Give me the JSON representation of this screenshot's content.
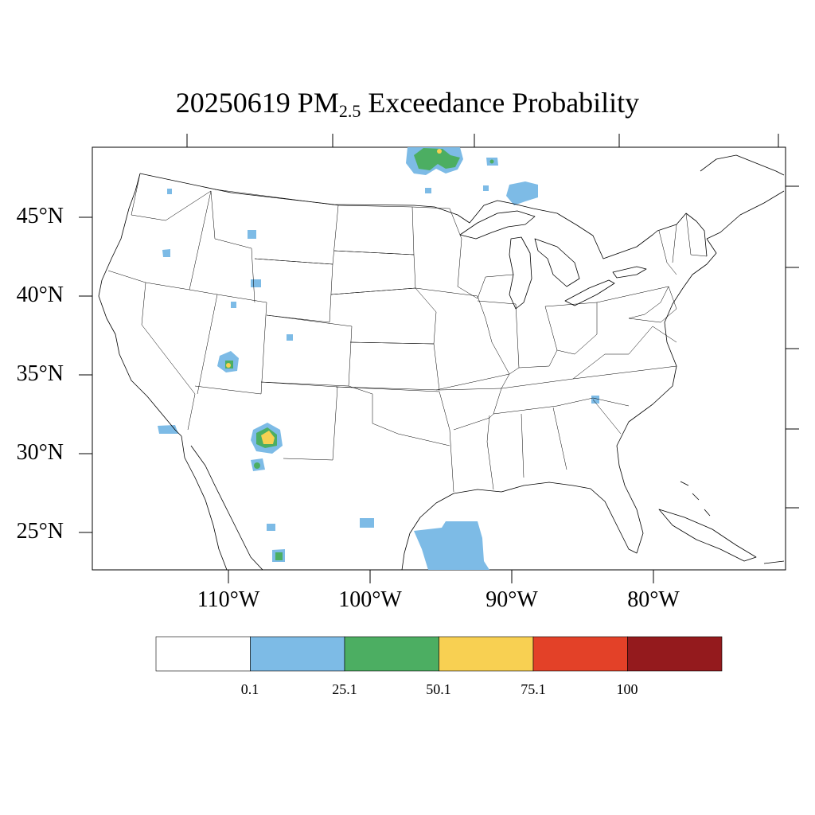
{
  "title": {
    "date": "20250619",
    "pm": "PM",
    "sub": "2.5",
    "rest": "Exceedance Probability"
  },
  "map": {
    "lat_labels": [
      "45°N",
      "40°N",
      "35°N",
      "30°N",
      "25°N"
    ],
    "lon_labels": [
      "110°W",
      "100°W",
      "90°W",
      "80°W"
    ],
    "extent": {
      "lon": [
        -118.7,
        -69.9
      ],
      "lat": [
        22.7,
        49.4
      ]
    }
  },
  "colorbar": {
    "colors": [
      "#ffffff",
      "#7dbbe6",
      "#4cae62",
      "#f8d052",
      "#e34128",
      "#941a1d"
    ],
    "labels": [
      "0.1",
      "25.1",
      "50.1",
      "75.1",
      "100"
    ]
  },
  "colors": {
    "outline": "#000000",
    "low": "#7dbbe6",
    "mid": "#4cae62",
    "high": "#f8d052"
  }
}
